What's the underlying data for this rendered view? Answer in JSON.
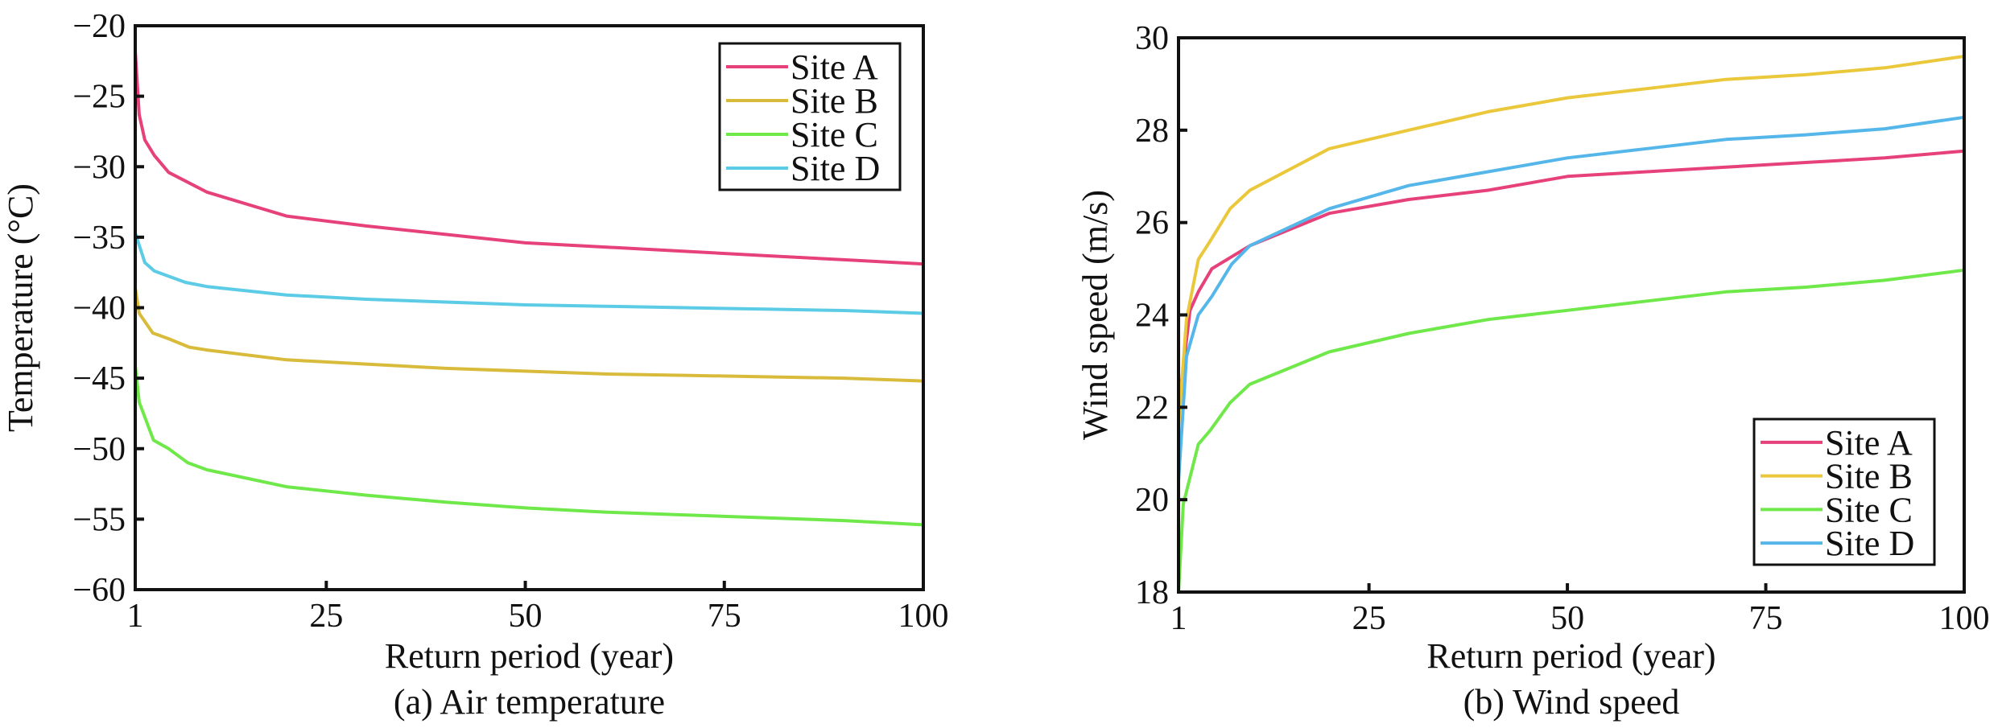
{
  "chart_data": [
    {
      "type": "line",
      "caption": "(a) Air temperature",
      "xlabel": "Return period (year)",
      "ylabel": "Temperature (°C)",
      "xlim": [
        1,
        100
      ],
      "ylim": [
        -60,
        -20
      ],
      "xticks": [
        1,
        25,
        50,
        75,
        100
      ],
      "xtick_labels": [
        "1",
        "25",
        "50",
        "75",
        "100"
      ],
      "yticks": [
        -20,
        -25,
        -30,
        -35,
        -40,
        -45,
        -50,
        -55,
        -60
      ],
      "ytick_labels": [
        "−20",
        "−25",
        "−30",
        "−35",
        "−40",
        "−45",
        "−50",
        "−55",
        "−60"
      ],
      "grid": false,
      "legend_position": "top-right",
      "series": [
        {
          "name": "Site A",
          "color": "#e6417a",
          "x": [
            1,
            1.5,
            2.2,
            3.4,
            5.2,
            10,
            20,
            30,
            40,
            50,
            60,
            70,
            80,
            90,
            100
          ],
          "y": [
            -21.8,
            -26.3,
            -28.1,
            -29.2,
            -30.4,
            -31.8,
            -33.5,
            -34.2,
            -34.8,
            -35.4,
            -35.7,
            -36.0,
            -36.3,
            -36.6,
            -36.9
          ]
        },
        {
          "name": "Site B",
          "color": "#d9bb3b",
          "x": [
            1,
            1.5,
            3.2,
            5.2,
            7.8,
            10,
            20,
            30,
            40,
            50,
            60,
            70,
            80,
            90,
            100
          ],
          "y": [
            -38.6,
            -40.4,
            -41.8,
            -42.2,
            -42.8,
            -43.0,
            -43.7,
            -44.0,
            -44.3,
            -44.5,
            -44.7,
            -44.8,
            -44.9,
            -45.0,
            -45.2
          ]
        },
        {
          "name": "Site C",
          "color": "#6fe84a",
          "x": [
            1,
            1.5,
            3.3,
            5.2,
            7.6,
            10,
            20,
            30,
            40,
            50,
            60,
            70,
            80,
            90,
            100
          ],
          "y": [
            -44.1,
            -46.7,
            -49.4,
            -50.0,
            -51.0,
            -51.5,
            -52.7,
            -53.3,
            -53.8,
            -54.2,
            -54.5,
            -54.7,
            -54.9,
            -55.1,
            -55.4
          ]
        },
        {
          "name": "Site D",
          "color": "#5ccbe6",
          "x": [
            1,
            2.2,
            3.4,
            7.3,
            10,
            20,
            30,
            40,
            50,
            60,
            70,
            80,
            90,
            100
          ],
          "y": [
            -34.7,
            -36.8,
            -37.4,
            -38.2,
            -38.5,
            -39.1,
            -39.4,
            -39.6,
            -39.8,
            -39.9,
            -40.0,
            -40.1,
            -40.2,
            -40.4
          ]
        }
      ]
    },
    {
      "type": "line",
      "caption": "(b) Wind speed",
      "xlabel": "Return period (year)",
      "ylabel": "Wind speed (m/s)",
      "xlim": [
        1,
        100
      ],
      "ylim": [
        18,
        30
      ],
      "xticks": [
        1,
        25,
        50,
        75,
        100
      ],
      "xtick_labels": [
        "1",
        "25",
        "50",
        "75",
        "100"
      ],
      "yticks": [
        18,
        20,
        22,
        24,
        26,
        28,
        30
      ],
      "ytick_labels": [
        "18",
        "20",
        "22",
        "24",
        "26",
        "28",
        "30"
      ],
      "grid": false,
      "legend_position": "bottom-right",
      "series": [
        {
          "name": "Site A",
          "color": "#e6417a",
          "x": [
            1,
            2.45,
            3.5,
            5.2,
            10,
            20,
            30,
            40,
            50,
            60,
            70,
            80,
            90,
            100
          ],
          "y": [
            22.0,
            24.1,
            24.5,
            25.0,
            25.5,
            26.2,
            26.5,
            26.7,
            27.0,
            27.1,
            27.2,
            27.3,
            27.4,
            27.55
          ]
        },
        {
          "name": "Site B",
          "color": "#ebc83b",
          "x": [
            1,
            2,
            3.5,
            5,
            7.5,
            10,
            20,
            30,
            40,
            50,
            60,
            70,
            80,
            90,
            100
          ],
          "y": [
            21.6,
            23.9,
            25.2,
            25.6,
            26.3,
            26.7,
            27.6,
            28.0,
            28.4,
            28.7,
            28.9,
            29.1,
            29.2,
            29.35,
            29.6
          ]
        },
        {
          "name": "Site C",
          "color": "#6fe84a",
          "x": [
            1,
            1.6,
            3.5,
            5,
            7.5,
            10,
            20,
            30,
            40,
            50,
            60,
            70,
            80,
            90,
            100
          ],
          "y": [
            18.0,
            19.9,
            21.2,
            21.5,
            22.1,
            22.5,
            23.2,
            23.6,
            23.9,
            24.1,
            24.3,
            24.5,
            24.6,
            24.75,
            24.97
          ]
        },
        {
          "name": "Site D",
          "color": "#55b6ea",
          "x": [
            1,
            2,
            3.5,
            5.2,
            7.7,
            10,
            20,
            30,
            40,
            50,
            60,
            70,
            80,
            90,
            100
          ],
          "y": [
            20.4,
            23.1,
            24.0,
            24.4,
            25.1,
            25.5,
            26.3,
            26.8,
            27.1,
            27.4,
            27.6,
            27.8,
            27.9,
            28.03,
            28.28
          ]
        }
      ]
    }
  ]
}
